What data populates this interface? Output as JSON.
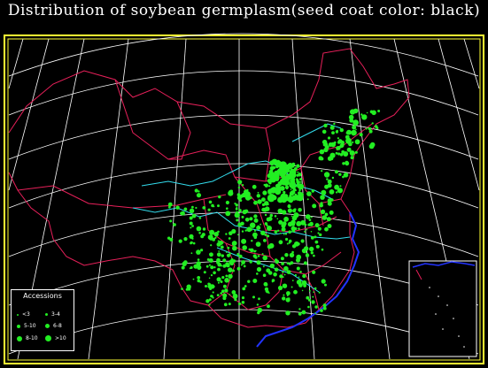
{
  "title": "Distribution  of soybean  germplasm(seed coat color: black)",
  "colors": {
    "background": "#000000",
    "frame": "#ffff33",
    "graticule": "#ffffff",
    "province_border": "#e8205a",
    "river": "#33ddee",
    "coast": "#2233ff",
    "points": "#22ee22"
  },
  "legend": {
    "title": "Accessions",
    "items": [
      {
        "label": "<3",
        "size": 1
      },
      {
        "label": "3-4",
        "size": 2
      },
      {
        "label": "5-10",
        "size": 3
      },
      {
        "label": "6-8",
        "size": 4
      },
      {
        "label": "8-10",
        "size": 5
      },
      {
        "label": ">10",
        "size": 6
      }
    ]
  }
}
